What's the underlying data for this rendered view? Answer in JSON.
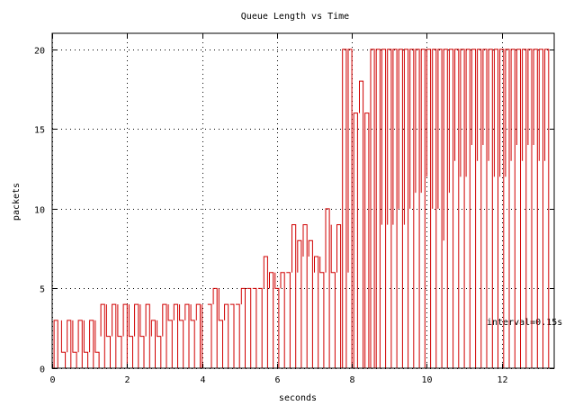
{
  "chart_data": {
    "type": "line",
    "step": "bars",
    "title": "Queue Length vs Time",
    "xlabel": "seconds",
    "ylabel": "packets",
    "annotation": "interval=0.15s",
    "interval": 0.15,
    "xlim": [
      0,
      13.4
    ],
    "ylim": [
      0,
      21
    ],
    "xticks": [
      0,
      2,
      4,
      6,
      8,
      10,
      12
    ],
    "yticks": [
      0,
      5,
      10,
      15,
      20
    ],
    "grid": true,
    "series_color": "#d00000",
    "bars": [
      [
        0.05,
        0.15,
        3,
        0
      ],
      [
        0.25,
        0.35,
        1,
        3
      ],
      [
        0.4,
        0.5,
        3,
        1
      ],
      [
        0.55,
        0.65,
        1,
        3
      ],
      [
        0.7,
        0.8,
        3,
        1
      ],
      [
        0.85,
        0.95,
        1,
        3
      ],
      [
        1.0,
        1.1,
        3,
        1
      ],
      [
        1.15,
        1.25,
        1,
        3
      ],
      [
        1.3,
        1.4,
        4,
        2
      ],
      [
        1.45,
        1.55,
        2,
        4
      ],
      [
        1.6,
        1.7,
        4,
        2
      ],
      [
        1.75,
        1.85,
        2,
        4
      ],
      [
        1.9,
        2.0,
        4,
        2
      ],
      [
        2.05,
        2.15,
        2,
        4
      ],
      [
        2.2,
        2.3,
        4,
        2
      ],
      [
        2.35,
        2.45,
        2,
        4
      ],
      [
        2.5,
        2.6,
        4,
        2
      ],
      [
        2.65,
        2.75,
        3,
        2
      ],
      [
        2.8,
        2.9,
        2,
        3
      ],
      [
        2.95,
        3.05,
        4,
        2
      ],
      [
        3.1,
        3.2,
        3,
        4
      ],
      [
        3.25,
        3.35,
        4,
        3
      ],
      [
        3.4,
        3.5,
        3,
        4
      ],
      [
        3.55,
        3.65,
        4,
        3
      ],
      [
        3.7,
        3.8,
        3,
        4
      ],
      [
        3.85,
        3.95,
        4,
        3
      ],
      [
        4.0,
        4.1,
        0,
        4
      ],
      [
        4.15,
        4.25,
        4,
        4
      ],
      [
        4.3,
        4.4,
        5,
        4
      ],
      [
        4.45,
        4.55,
        3,
        5
      ],
      [
        4.6,
        4.7,
        4,
        3
      ],
      [
        4.75,
        4.85,
        4,
        4
      ],
      [
        4.9,
        5.0,
        4,
        4
      ],
      [
        5.05,
        5.15,
        5,
        4
      ],
      [
        5.2,
        5.3,
        5,
        5
      ],
      [
        5.35,
        5.45,
        5,
        5
      ],
      [
        5.5,
        5.6,
        5,
        5
      ],
      [
        5.65,
        5.75,
        7,
        5
      ],
      [
        5.8,
        5.9,
        6,
        5
      ],
      [
        5.95,
        6.05,
        5,
        6
      ],
      [
        6.1,
        6.2,
        6,
        5
      ],
      [
        6.25,
        6.35,
        6,
        6
      ],
      [
        6.4,
        6.5,
        9,
        6
      ],
      [
        6.55,
        6.65,
        8,
        6
      ],
      [
        6.7,
        6.8,
        9,
        7
      ],
      [
        6.85,
        6.95,
        8,
        7
      ],
      [
        7.0,
        7.1,
        7,
        6
      ],
      [
        7.15,
        7.25,
        6,
        7
      ],
      [
        7.3,
        7.4,
        10,
        6
      ],
      [
        7.45,
        7.55,
        6,
        9
      ],
      [
        7.6,
        7.7,
        9,
        6
      ],
      [
        7.75,
        7.85,
        20,
        0
      ],
      [
        7.9,
        8.0,
        20,
        6
      ],
      [
        8.05,
        8.15,
        16,
        0
      ],
      [
        8.2,
        8.3,
        18,
        16
      ],
      [
        8.35,
        8.45,
        16,
        0
      ],
      [
        8.5,
        8.6,
        20,
        0
      ],
      [
        8.65,
        8.75,
        20,
        0
      ],
      [
        8.8,
        8.9,
        20,
        9
      ],
      [
        8.95,
        9.05,
        20,
        9
      ],
      [
        9.1,
        9.2,
        20,
        9
      ],
      [
        9.25,
        9.35,
        20,
        10
      ],
      [
        9.4,
        9.5,
        20,
        9
      ],
      [
        9.55,
        9.65,
        20,
        10
      ],
      [
        9.7,
        9.8,
        20,
        11
      ],
      [
        9.85,
        9.95,
        20,
        11
      ],
      [
        10.0,
        10.1,
        20,
        12
      ],
      [
        10.15,
        10.25,
        20,
        10
      ],
      [
        10.3,
        10.4,
        20,
        10
      ],
      [
        10.45,
        10.55,
        20,
        8
      ],
      [
        10.6,
        10.7,
        20,
        11
      ],
      [
        10.75,
        10.85,
        20,
        13
      ],
      [
        10.9,
        11.0,
        20,
        12
      ],
      [
        11.05,
        11.15,
        20,
        12
      ],
      [
        11.2,
        11.3,
        20,
        14
      ],
      [
        11.35,
        11.45,
        20,
        13
      ],
      [
        11.5,
        11.6,
        20,
        14
      ],
      [
        11.65,
        11.75,
        20,
        13
      ],
      [
        11.8,
        11.9,
        20,
        12
      ],
      [
        11.95,
        12.05,
        20,
        12
      ],
      [
        12.1,
        12.2,
        20,
        12
      ],
      [
        12.25,
        12.35,
        20,
        13
      ],
      [
        12.4,
        12.5,
        20,
        14
      ],
      [
        12.55,
        12.65,
        20,
        13
      ],
      [
        12.7,
        12.8,
        20,
        14
      ],
      [
        12.85,
        12.95,
        20,
        14
      ],
      [
        13.0,
        13.1,
        20,
        13
      ],
      [
        13.15,
        13.25,
        20,
        13
      ]
    ]
  }
}
